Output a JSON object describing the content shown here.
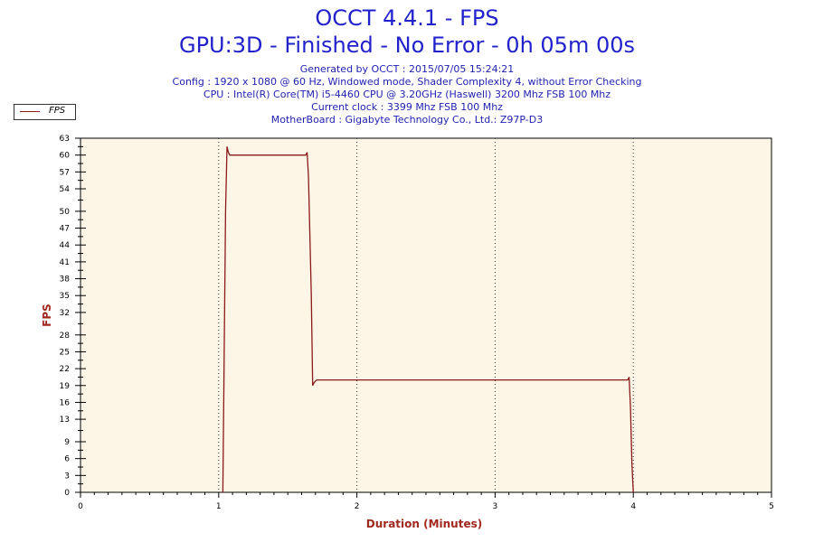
{
  "header": {
    "title": "OCCT 4.4.1 - FPS",
    "subtitle": "GPU:3D - Finished - No Error - 0h 05m 00s",
    "info_lines": [
      "Generated by OCCT : 2015/07/05 15:24:21",
      "Config : 1920 x 1080 @ 60 Hz, Windowed mode, Shader Complexity 4, without Error Checking",
      "CPU : Intel(R) Core(TM) i5-4460 CPU @ 3.20GHz (Haswell) 3200 Mhz FSB 100 Mhz",
      "Current clock : 3399 Mhz FSB 100 Mhz",
      "MotherBoard : Gigabyte Technology Co., Ltd.: Z97P-D3"
    ]
  },
  "colors": {
    "plot_background": "#fdf6e6",
    "series_line": "#8b1a1a",
    "title": "#2222cc",
    "axis_title": "#a0281e"
  },
  "chart_data": {
    "type": "line",
    "xlabel": "Duration (Minutes)",
    "ylabel": "FPS",
    "xlim": [
      0,
      5
    ],
    "ylim": [
      0,
      63
    ],
    "x_ticks": [
      0,
      1,
      2,
      3,
      4,
      5
    ],
    "y_ticks": [
      0,
      3,
      6,
      9,
      13,
      16,
      19,
      22,
      25,
      28,
      32,
      35,
      38,
      41,
      44,
      47,
      50,
      54,
      57,
      60,
      63
    ],
    "grid": "vertical dotted at 1, 2, 3, 4",
    "legend": "top-left, outside plot",
    "series": [
      {
        "name": "FPS",
        "x": [
          1.03,
          1.05,
          1.06,
          1.07,
          1.08,
          1.1,
          1.2,
          1.3,
          1.4,
          1.5,
          1.6,
          1.63,
          1.64,
          1.65,
          1.67,
          1.68,
          1.69,
          1.7,
          1.71,
          1.8,
          2.0,
          2.5,
          3.0,
          3.5,
          3.96,
          3.97,
          3.98,
          3.99,
          4.0
        ],
        "y": [
          0,
          50,
          61.5,
          60.5,
          60,
          60,
          60,
          60,
          60,
          60,
          60,
          60,
          60.5,
          56,
          35,
          19,
          19.5,
          19.8,
          20,
          20,
          20,
          20,
          20,
          20,
          20,
          20.5,
          15,
          5,
          0
        ]
      }
    ]
  }
}
